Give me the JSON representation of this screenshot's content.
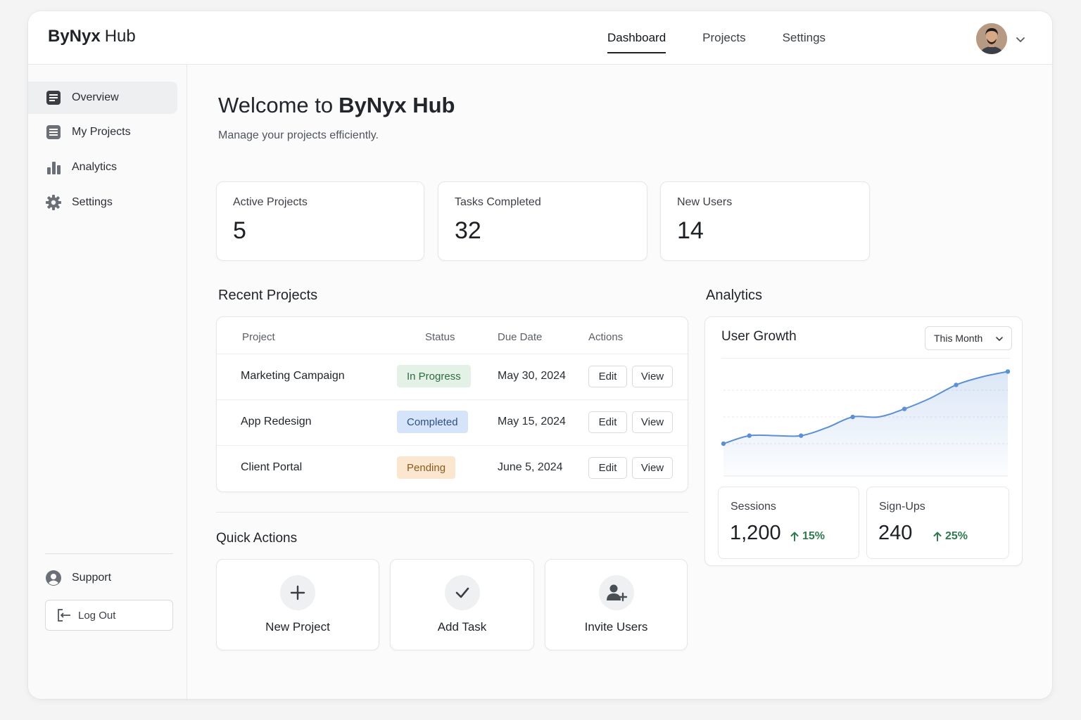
{
  "brand": {
    "name_bold": "ByNyx",
    "name_rest": "Hub"
  },
  "topnav": {
    "tabs": [
      {
        "label": "Dashboard"
      },
      {
        "label": "Projects"
      },
      {
        "label": "Settings"
      }
    ]
  },
  "sidebar": {
    "items": [
      {
        "label": "Overview",
        "icon": "document-icon"
      },
      {
        "label": "My Projects",
        "icon": "list-icon"
      },
      {
        "label": "Analytics",
        "icon": "bar-chart-icon"
      },
      {
        "label": "Settings",
        "icon": "gear-icon"
      }
    ],
    "support_label": "Support",
    "logout_label": "Log Out"
  },
  "main": {
    "welcome_prefix": "Welcome to",
    "welcome_brand": "ByNyx Hub",
    "subtitle": "Manage your projects efficiently."
  },
  "stats": [
    {
      "label": "Active Projects",
      "value": "5"
    },
    {
      "label": "Tasks Completed",
      "value": "32"
    },
    {
      "label": "New Users",
      "value": "14"
    }
  ],
  "recent_projects": {
    "title": "Recent Projects",
    "headers": {
      "project": "Project",
      "status": "Status",
      "due": "Due Date",
      "actions": "Actions"
    },
    "rows": [
      {
        "name": "Marketing Campaign",
        "status": "In Progress",
        "due": "May 30, 2024",
        "edit": "Edit",
        "view": "View"
      },
      {
        "name": "App Redesign",
        "status": "Completed",
        "due": "May 15, 2024",
        "edit": "Edit",
        "view": "View"
      },
      {
        "name": "Client Portal",
        "status": "Pending",
        "due": "June 5, 2024",
        "edit": "Edit",
        "view": "View"
      }
    ]
  },
  "status_colors": {
    "in_progress": {
      "bg": "#e3f1e6",
      "fg": "#2f6b42"
    },
    "completed": {
      "bg": "#d6e4fa",
      "fg": "#2d4f86"
    },
    "pending": {
      "bg": "#fbe7cf",
      "fg": "#8a5a1e"
    }
  },
  "quick_actions": {
    "title": "Quick Actions",
    "items": [
      {
        "label": "New Project",
        "icon": "plus-icon"
      },
      {
        "label": "Add Task",
        "icon": "check-icon"
      },
      {
        "label": "Invite Users",
        "icon": "add-user-icon"
      }
    ]
  },
  "analytics": {
    "title": "Analytics",
    "card_title": "User Growth",
    "range_select": "This Month",
    "sessions": {
      "label": "Sessions",
      "value": "1,200",
      "change": "15%"
    },
    "signups": {
      "label": "Sign-Ups",
      "value": "240",
      "change": "25%"
    },
    "accent_color": "#5b8fd6"
  },
  "chart_data": {
    "type": "line",
    "title": "User Growth",
    "x": [
      0,
      1,
      2,
      3,
      4,
      5,
      6,
      7,
      8,
      9,
      10,
      11
    ],
    "series": [
      {
        "values": [
          10,
          13,
          13,
          13,
          16,
          20,
          20,
          23,
          27,
          32,
          35,
          37
        ]
      }
    ],
    "ylim": [
      0,
      40
    ],
    "grid": true,
    "markers_at": [
      0,
      1,
      3,
      5,
      7,
      9,
      11
    ]
  }
}
